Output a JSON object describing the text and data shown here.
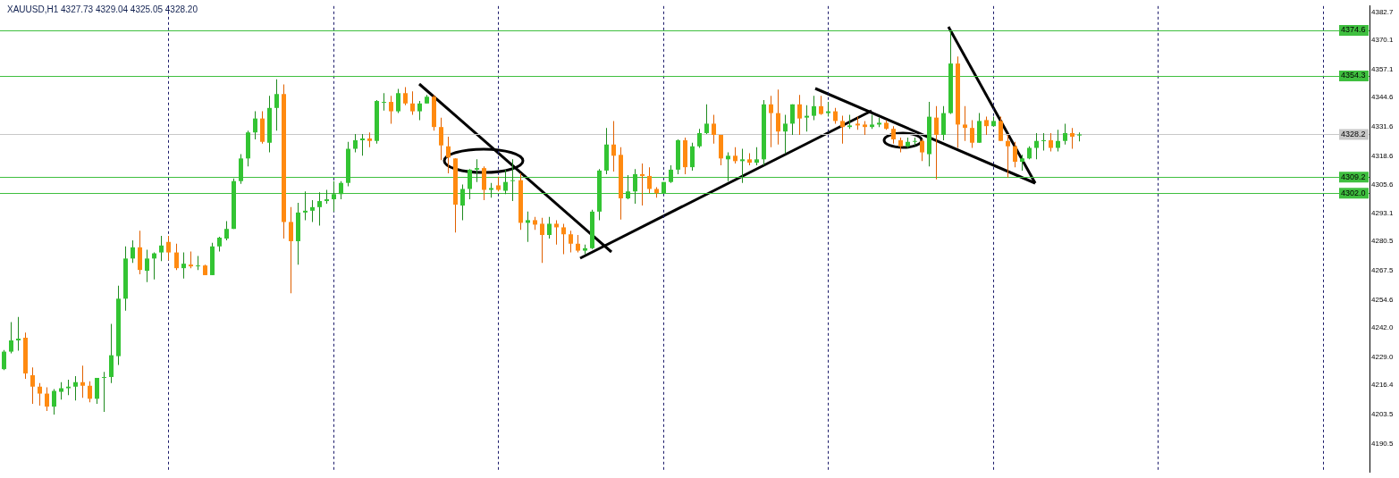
{
  "chart_data": {
    "type": "candlestick",
    "title": "XAUUSD,H1 4327.73 4329.04 4325.05 4328.20",
    "categories": [
      null,
      null,
      null,
      null,
      null,
      null,
      null,
      null,
      null,
      null,
      null,
      null,
      null,
      null,
      null,
      null,
      null,
      null,
      null,
      null,
      null,
      null,
      null,
      null,
      null,
      null,
      null,
      null,
      null,
      null,
      null,
      null,
      null,
      null,
      null,
      null,
      null,
      null,
      null,
      null,
      null,
      null,
      null,
      null,
      null,
      null,
      null,
      null,
      null,
      null,
      null,
      null,
      null,
      null,
      null,
      null,
      null,
      null,
      null,
      null,
      null,
      null,
      null,
      null,
      null,
      null,
      null,
      null,
      null,
      null,
      null,
      null,
      null,
      null,
      null,
      null,
      null,
      null,
      null,
      null,
      null,
      null,
      null,
      null,
      null,
      null,
      null,
      null,
      null,
      null,
      null,
      null,
      null,
      null,
      null,
      null,
      null,
      null,
      null,
      null,
      null,
      null,
      null,
      null,
      null,
      null,
      null,
      null,
      null,
      null,
      null,
      null,
      null,
      null,
      null,
      null,
      null,
      null,
      null,
      null,
      null,
      null,
      null,
      null,
      null,
      null,
      null,
      null,
      null,
      null,
      null,
      null,
      null,
      null,
      null,
      null,
      null,
      null,
      null,
      null,
      null,
      null,
      null,
      null,
      null,
      null,
      null,
      null,
      null,
      null,
      null,
      null,
      null,
      null,
      null,
      null,
      null,
      null,
      null,
      null,
      null,
      null,
      null,
      null,
      null,
      null,
      null,
      null,
      null,
      null,
      null,
      null,
      null,
      null,
      null,
      null,
      null,
      null,
      null,
      null,
      null,
      null,
      null,
      null,
      null,
      null,
      null,
      null,
      null,
      null,
      null
    ],
    "ohlc": [
      [
        4223.6,
        4232.1,
        4223.2,
        4231.4
      ],
      [
        4231.4,
        4244.6,
        4230.6,
        4236.4
      ],
      [
        4236.4,
        4246.9,
        4231.8,
        4237.2
      ],
      [
        4237.6,
        4239.9,
        4219.3,
        4221.7
      ],
      [
        4220.9,
        4224.4,
        4208.1,
        4215.8
      ],
      [
        4215.8,
        4217.4,
        4207.3,
        4212.7
      ],
      [
        4212.7,
        4215.5,
        4205.0,
        4206.9
      ],
      [
        4206.9,
        4214.7,
        4203.4,
        4213.9
      ],
      [
        4213.5,
        4217.8,
        4210.0,
        4215.1
      ],
      [
        4215.1,
        4218.9,
        4212.0,
        4215.8
      ],
      [
        4215.8,
        4220.5,
        4209.6,
        4217.8
      ],
      [
        4217.8,
        4225.2,
        4210.8,
        4216.2
      ],
      [
        4216.2,
        4218.2,
        4208.8,
        4210.4
      ],
      [
        4210.4,
        4219.7,
        4208.1,
        4219.7
      ],
      [
        4219.7,
        4222.4,
        4204.6,
        4220.1
      ],
      [
        4220.1,
        4243.8,
        4217.4,
        4229.8
      ],
      [
        4229.4,
        4260.8,
        4225.5,
        4255.0
      ],
      [
        4255.0,
        4278.3,
        4249.6,
        4272.9
      ],
      [
        4272.9,
        4281.0,
        4270.9,
        4277.9
      ],
      [
        4277.9,
        4285.3,
        4265.9,
        4267.8
      ],
      [
        4267.4,
        4276.8,
        4262.4,
        4272.9
      ],
      [
        4272.9,
        4275.6,
        4263.6,
        4275.2
      ],
      [
        4275.6,
        4283.0,
        4271.7,
        4278.7
      ],
      [
        4280.3,
        4283.0,
        4272.1,
        4275.6
      ],
      [
        4275.6,
        4279.5,
        4267.8,
        4268.6
      ],
      [
        4268.6,
        4275.6,
        4264.0,
        4270.6
      ],
      [
        4270.2,
        4276.0,
        4268.6,
        4269.4
      ],
      [
        4269.4,
        4274.0,
        4267.8,
        4269.8
      ],
      [
        4269.8,
        4270.2,
        4265.5,
        4265.5
      ],
      [
        4265.5,
        4279.9,
        4265.5,
        4278.3
      ],
      [
        4278.3,
        4282.6,
        4276.0,
        4282.2
      ],
      [
        4281.8,
        4289.6,
        4281.0,
        4286.1
      ],
      [
        4286.1,
        4308.6,
        4286.1,
        4307.4
      ],
      [
        4307.4,
        4319.4,
        4306.2,
        4317.5
      ],
      [
        4317.5,
        4329.9,
        4314.0,
        4329.1
      ],
      [
        4329.1,
        4338.5,
        4326.0,
        4335.3
      ],
      [
        4335.3,
        4338.5,
        4324.1,
        4324.9
      ],
      [
        4324.5,
        4345.4,
        4320.2,
        4340.0
      ],
      [
        4340.0,
        4352.8,
        4329.9,
        4346.2
      ],
      [
        4346.2,
        4350.5,
        4281.8,
        4289.2
      ],
      [
        4289.2,
        4295.8,
        4257.4,
        4280.6
      ],
      [
        4280.6,
        4297.7,
        4270.2,
        4293.4
      ],
      [
        4293.4,
        4302.8,
        4290.0,
        4294.2
      ],
      [
        4294.2,
        4298.9,
        4289.2,
        4295.8
      ],
      [
        4295.8,
        4302.4,
        4287.6,
        4298.5
      ],
      [
        4298.5,
        4303.5,
        4297.3,
        4299.3
      ],
      [
        4299.3,
        4307.4,
        4293.8,
        4301.6
      ],
      [
        4301.6,
        4307.4,
        4299.3,
        4306.6
      ],
      [
        4306.6,
        4324.9,
        4305.1,
        4321.8
      ],
      [
        4321.8,
        4328.4,
        4320.2,
        4325.6
      ],
      [
        4325.6,
        4328.4,
        4318.7,
        4326.4
      ],
      [
        4326.4,
        4329.1,
        4322.5,
        4325.3
      ],
      [
        4325.3,
        4343.5,
        4324.1,
        4343.1
      ],
      [
        4342.7,
        4346.6,
        4338.8,
        4342.7
      ],
      [
        4342.7,
        4345.4,
        4333.0,
        4338.5
      ],
      [
        4338.5,
        4348.5,
        4337.7,
        4346.6
      ],
      [
        4346.6,
        4349.3,
        4341.2,
        4342.0
      ],
      [
        4342.0,
        4347.4,
        4336.9,
        4338.5
      ],
      [
        4338.5,
        4343.1,
        4334.6,
        4342.0
      ],
      [
        4342.0,
        4345.8,
        4342.0,
        4345.0
      ],
      [
        4345.0,
        4345.8,
        4329.9,
        4331.5
      ],
      [
        4331.5,
        4335.7,
        4316.7,
        4323.3
      ],
      [
        4322.9,
        4327.2,
        4310.9,
        4317.9
      ],
      [
        4317.5,
        4317.5,
        4284.5,
        4296.9
      ],
      [
        4296.5,
        4305.9,
        4290.0,
        4303.9
      ],
      [
        4303.9,
        4312.8,
        4299.3,
        4312.5
      ],
      [
        4312.5,
        4317.1,
        4307.0,
        4313.2
      ],
      [
        4313.2,
        4314.0,
        4298.9,
        4303.5
      ],
      [
        4303.5,
        4306.6,
        4300.0,
        4304.3
      ],
      [
        4305.5,
        4309.4,
        4302.8,
        4303.5
      ],
      [
        4303.1,
        4312.5,
        4301.6,
        4307.0
      ],
      [
        4307.4,
        4317.1,
        4298.5,
        4307.8
      ],
      [
        4307.8,
        4310.9,
        4285.7,
        4288.8
      ],
      [
        4288.8,
        4293.8,
        4280.3,
        4290.0
      ],
      [
        4290.0,
        4291.5,
        4285.7,
        4288.0
      ],
      [
        4288.4,
        4291.1,
        4270.9,
        4283.4
      ],
      [
        4283.4,
        4291.5,
        4281.8,
        4288.4
      ],
      [
        4288.4,
        4290.0,
        4279.1,
        4286.8
      ],
      [
        4286.8,
        4288.4,
        4274.8,
        4283.7
      ],
      [
        4283.7,
        4285.3,
        4275.6,
        4279.5
      ],
      [
        4279.5,
        4283.4,
        4275.6,
        4276.4
      ],
      [
        4276.4,
        4279.1,
        4274.8,
        4277.5
      ],
      [
        4277.5,
        4294.6,
        4277.1,
        4293.8
      ],
      [
        4293.8,
        4312.8,
        4290.0,
        4312.1
      ],
      [
        4312.1,
        4331.1,
        4310.5,
        4323.7
      ],
      [
        4323.7,
        4334.2,
        4311.7,
        4318.7
      ],
      [
        4319.1,
        4322.5,
        4290.3,
        4299.7
      ],
      [
        4299.7,
        4310.1,
        4299.3,
        4302.8
      ],
      [
        4302.8,
        4312.8,
        4297.3,
        4310.5
      ],
      [
        4310.5,
        4315.2,
        4296.5,
        4309.7
      ],
      [
        4309.7,
        4313.6,
        4302.0,
        4303.9
      ],
      [
        4303.9,
        4304.7,
        4300.0,
        4302.0
      ],
      [
        4302.0,
        4307.0,
        4302.0,
        4307.0
      ],
      [
        4307.0,
        4314.4,
        4306.6,
        4312.5
      ],
      [
        4312.5,
        4326.0,
        4310.5,
        4325.6
      ],
      [
        4325.6,
        4326.8,
        4310.5,
        4313.6
      ],
      [
        4313.6,
        4324.5,
        4312.1,
        4322.9
      ],
      [
        4322.9,
        4330.7,
        4322.2,
        4328.8
      ],
      [
        4328.8,
        4341.6,
        4328.4,
        4333.0
      ],
      [
        4333.0,
        4336.9,
        4324.1,
        4328.0
      ],
      [
        4328.0,
        4328.0,
        4314.4,
        4317.5
      ],
      [
        4317.1,
        4320.2,
        4307.4,
        4318.7
      ],
      [
        4318.7,
        4322.5,
        4315.2,
        4316.3
      ],
      [
        4316.3,
        4321.8,
        4306.6,
        4317.1
      ],
      [
        4317.1,
        4319.8,
        4314.4,
        4315.6
      ],
      [
        4315.6,
        4322.5,
        4314.4,
        4317.1
      ],
      [
        4317.1,
        4343.5,
        4314.4,
        4341.6
      ],
      [
        4341.6,
        4345.4,
        4322.5,
        4337.7
      ],
      [
        4337.7,
        4348.2,
        4323.7,
        4329.5
      ],
      [
        4329.5,
        4336.9,
        4319.8,
        4333.0
      ],
      [
        4333.0,
        4341.6,
        4328.0,
        4341.6
      ],
      [
        4341.6,
        4345.8,
        4328.0,
        4335.3
      ],
      [
        4335.7,
        4341.2,
        4329.5,
        4336.5
      ],
      [
        4336.5,
        4345.4,
        4334.6,
        4340.8
      ],
      [
        4340.8,
        4345.4,
        4336.9,
        4337.3
      ],
      [
        4337.7,
        4342.7,
        4336.1,
        4338.5
      ],
      [
        4338.5,
        4340.0,
        4333.0,
        4334.2
      ],
      [
        4334.2,
        4336.5,
        4324.1,
        4331.5
      ],
      [
        4331.5,
        4336.9,
        4330.7,
        4332.2
      ],
      [
        4333.0,
        4336.1,
        4330.3,
        4332.2
      ],
      [
        4332.6,
        4334.2,
        4328.0,
        4331.5
      ],
      [
        4331.5,
        4336.9,
        4330.7,
        4332.6
      ],
      [
        4332.6,
        4335.7,
        4331.5,
        4333.4
      ],
      [
        4333.4,
        4334.6,
        4330.3,
        4330.7
      ],
      [
        4330.7,
        4331.9,
        4324.1,
        4326.0
      ],
      [
        4325.6,
        4326.8,
        4320.2,
        4322.9
      ],
      [
        4322.9,
        4326.8,
        4322.2,
        4324.9
      ],
      [
        4324.9,
        4326.8,
        4323.3,
        4325.3
      ],
      [
        4325.3,
        4326.0,
        4316.3,
        4320.2
      ],
      [
        4319.4,
        4342.7,
        4314.0,
        4336.1
      ],
      [
        4335.7,
        4340.8,
        4308.2,
        4328.0
      ],
      [
        4328.0,
        4340.8,
        4325.6,
        4337.7
      ],
      [
        4337.7,
        4374.1,
        4337.3,
        4359.8
      ],
      [
        4359.8,
        4362.9,
        4322.2,
        4332.6
      ],
      [
        4332.6,
        4340.8,
        4325.3,
        4331.1
      ],
      [
        4331.1,
        4334.6,
        4322.2,
        4324.5
      ],
      [
        4324.5,
        4337.7,
        4324.5,
        4334.2
      ],
      [
        4334.6,
        4336.1,
        4328.0,
        4331.9
      ],
      [
        4331.9,
        4336.1,
        4331.9,
        4334.2
      ],
      [
        4334.2,
        4336.1,
        4325.3,
        4325.3
      ],
      [
        4325.3,
        4328.0,
        4309.0,
        4322.9
      ],
      [
        4322.9,
        4324.9,
        4313.6,
        4316.0
      ],
      [
        4316.0,
        4319.1,
        4312.1,
        4317.5
      ],
      [
        4317.5,
        4322.9,
        4317.1,
        4322.2
      ],
      [
        4322.2,
        4328.8,
        4317.1,
        4325.3
      ],
      [
        4325.3,
        4328.8,
        4321.0,
        4325.6
      ],
      [
        4325.6,
        4328.8,
        4320.6,
        4322.2
      ],
      [
        4322.2,
        4330.3,
        4320.6,
        4325.3
      ],
      [
        4325.3,
        4333.0,
        4323.7,
        4328.8
      ],
      [
        4328.8,
        4331.1,
        4321.8,
        4327.2
      ],
      [
        4327.73,
        4329.04,
        4325.05,
        4328.2
      ],
      null,
      null,
      null,
      null,
      null,
      null,
      null,
      null,
      null,
      null,
      null,
      null,
      null,
      null,
      null,
      null,
      null,
      null,
      null,
      null,
      null,
      null,
      null,
      null,
      null,
      null,
      null,
      null,
      null,
      null,
      null,
      null,
      null,
      null,
      null,
      null,
      null,
      null,
      null,
      null
    ],
    "ylim": [
      4177.8,
      4385.4
    ],
    "yticks": [
      4382.7,
      4370.1,
      4357.1,
      4344.6,
      4331.6,
      4318.6,
      4305.6,
      4293.1,
      4280.5,
      4267.5,
      4254.6,
      {
        "value": 4242,
        "label": "4242.0"
      },
      {
        "value": 4229,
        "label": "4229.0"
      },
      4216.4,
      4203.5,
      4190.5
    ],
    "tick_labels": "y",
    "ref_lines": [
      {
        "axis": "y",
        "value": 4374.6,
        "label": "4374.6",
        "color": "#3fbf3f"
      },
      {
        "axis": "y",
        "value": 4354.3,
        "label": "4354.3",
        "color": "#3fbf3f"
      },
      {
        "axis": "y",
        "value": 4328.2,
        "label": "4328.2",
        "color": "#c8c8c8"
      },
      {
        "axis": "y",
        "value": 4309.2,
        "label": "4309.2",
        "color": "#3fbf3f"
      },
      {
        "axis": "y",
        "value": 4302,
        "label": "4302.0",
        "color": "#3fbf3f"
      }
    ]
  }
}
